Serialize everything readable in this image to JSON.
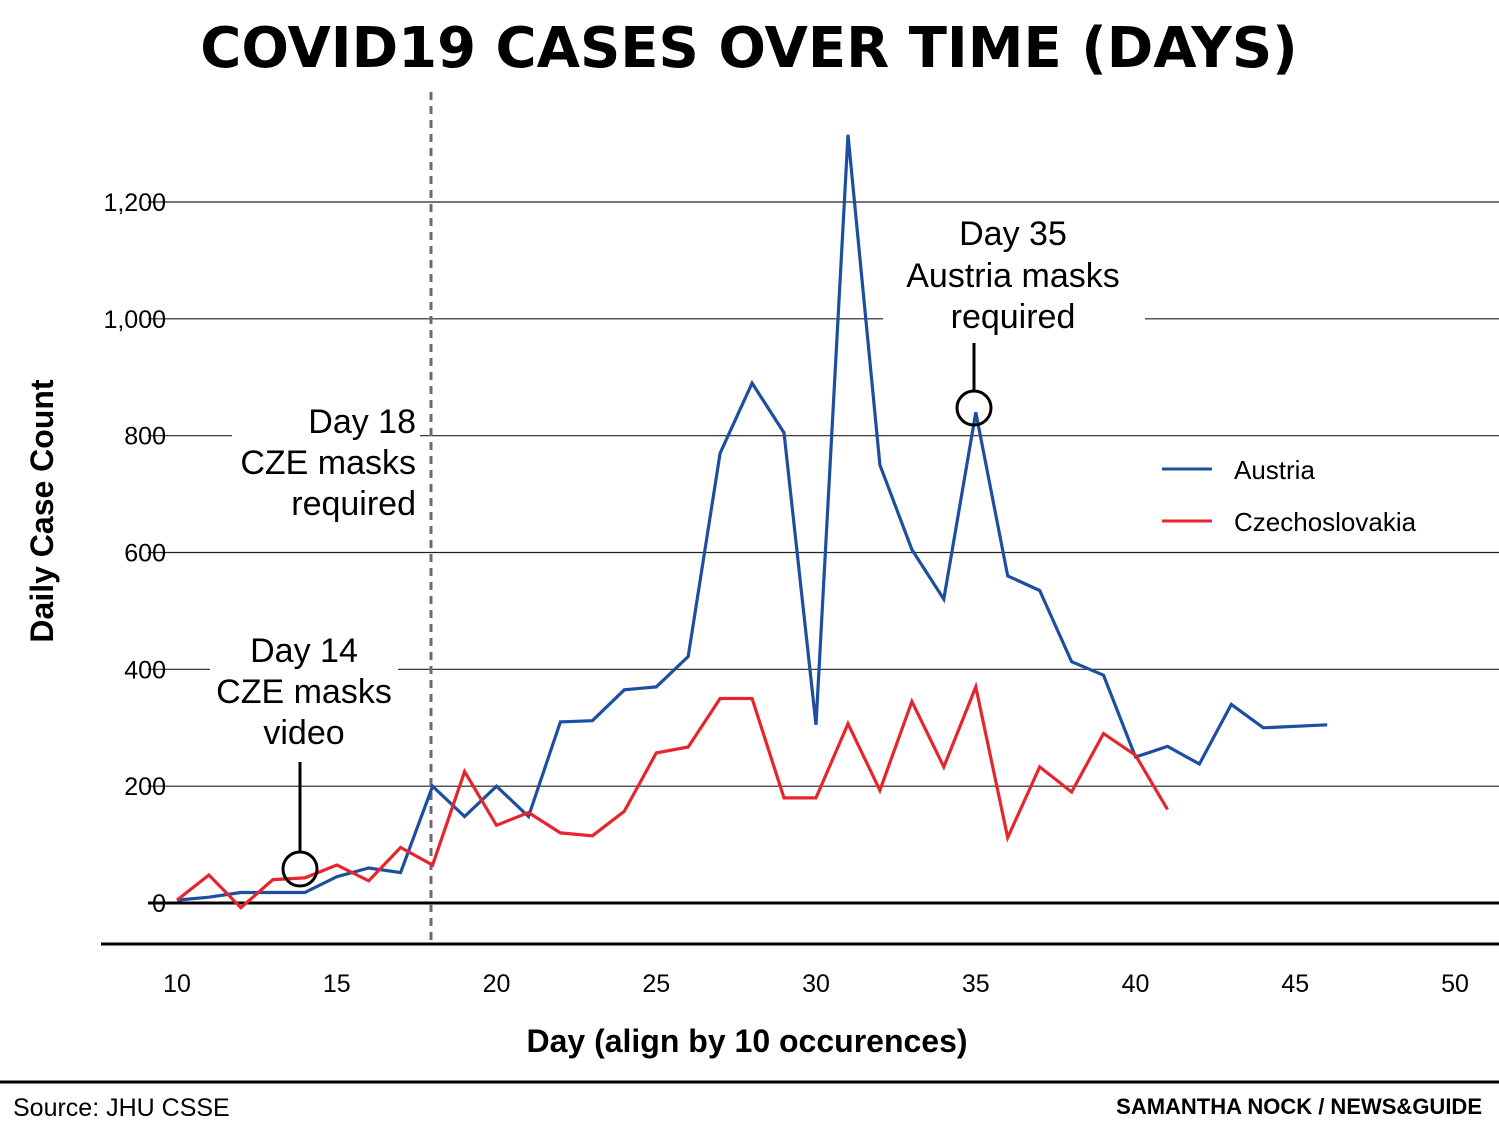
{
  "chart_data": {
    "type": "line",
    "title": "COVID19 CASES OVER TIME (DAYS)",
    "xlabel": "Day (align by 10 occurences)",
    "ylabel": "Daily Case Count",
    "xlim": [
      10,
      50
    ],
    "ylim": [
      0,
      1300
    ],
    "x_ticks": [
      10,
      15,
      20,
      25,
      30,
      35,
      40,
      45,
      50
    ],
    "y_ticks": [
      0,
      200,
      400,
      600,
      800,
      1000,
      1200
    ],
    "x_tick_labels": [
      "10",
      "15",
      "20",
      "25",
      "30",
      "35",
      "40",
      "45",
      "50"
    ],
    "y_tick_labels": [
      "0",
      "200",
      "400",
      "600",
      "800",
      "1,000",
      "1,200"
    ],
    "grid": "horizontal",
    "legend_position": "right",
    "series": [
      {
        "name": "Austria",
        "color": "#1d4fa0",
        "x": [
          10,
          11,
          12,
          13,
          14,
          15,
          16,
          17,
          18,
          19,
          20,
          21,
          22,
          23,
          24,
          25,
          26,
          27,
          28,
          29,
          30,
          31,
          32,
          33,
          34,
          35,
          36,
          37,
          38,
          39,
          40,
          41,
          42,
          43,
          44,
          46
        ],
        "y": [
          5,
          10,
          18,
          18,
          18,
          45,
          60,
          52,
          200,
          148,
          200,
          148,
          310,
          312,
          365,
          370,
          422,
          770,
          890,
          805,
          305,
          1315,
          750,
          605,
          520,
          840,
          560,
          535,
          413,
          390,
          250,
          268,
          238,
          340,
          300,
          305
        ]
      },
      {
        "name": "Czechoslovakia",
        "color": "#e5262c",
        "x": [
          10,
          11,
          12,
          13,
          14,
          15,
          16,
          17,
          18,
          19,
          20,
          21,
          22,
          23,
          24,
          25,
          26,
          27,
          28,
          29,
          30,
          31,
          32,
          33,
          34,
          35,
          36,
          37,
          38,
          39,
          40,
          41
        ],
        "y": [
          5,
          48,
          -8,
          40,
          43,
          65,
          38,
          95,
          65,
          225,
          133,
          155,
          120,
          115,
          157,
          257,
          267,
          350,
          350,
          180,
          180,
          307,
          193,
          345,
          233,
          370,
          112,
          233,
          190,
          290,
          253,
          160
        ]
      }
    ],
    "annotations": [
      {
        "id": "day14",
        "x": 14,
        "y": 43,
        "lines": [
          "Day 14",
          "CZE masks",
          "video"
        ]
      },
      {
        "id": "day18",
        "x": 18,
        "lines": [
          "Day 18",
          "CZE masks",
          "required"
        ]
      },
      {
        "id": "day35",
        "x": 35,
        "y": 840,
        "lines": [
          "Day 35",
          "Austria masks",
          "required"
        ]
      }
    ]
  },
  "footer": {
    "source": "Source: JHU CSSE",
    "credit": "SAMANTHA NOCK / NEWS&GUIDE"
  }
}
